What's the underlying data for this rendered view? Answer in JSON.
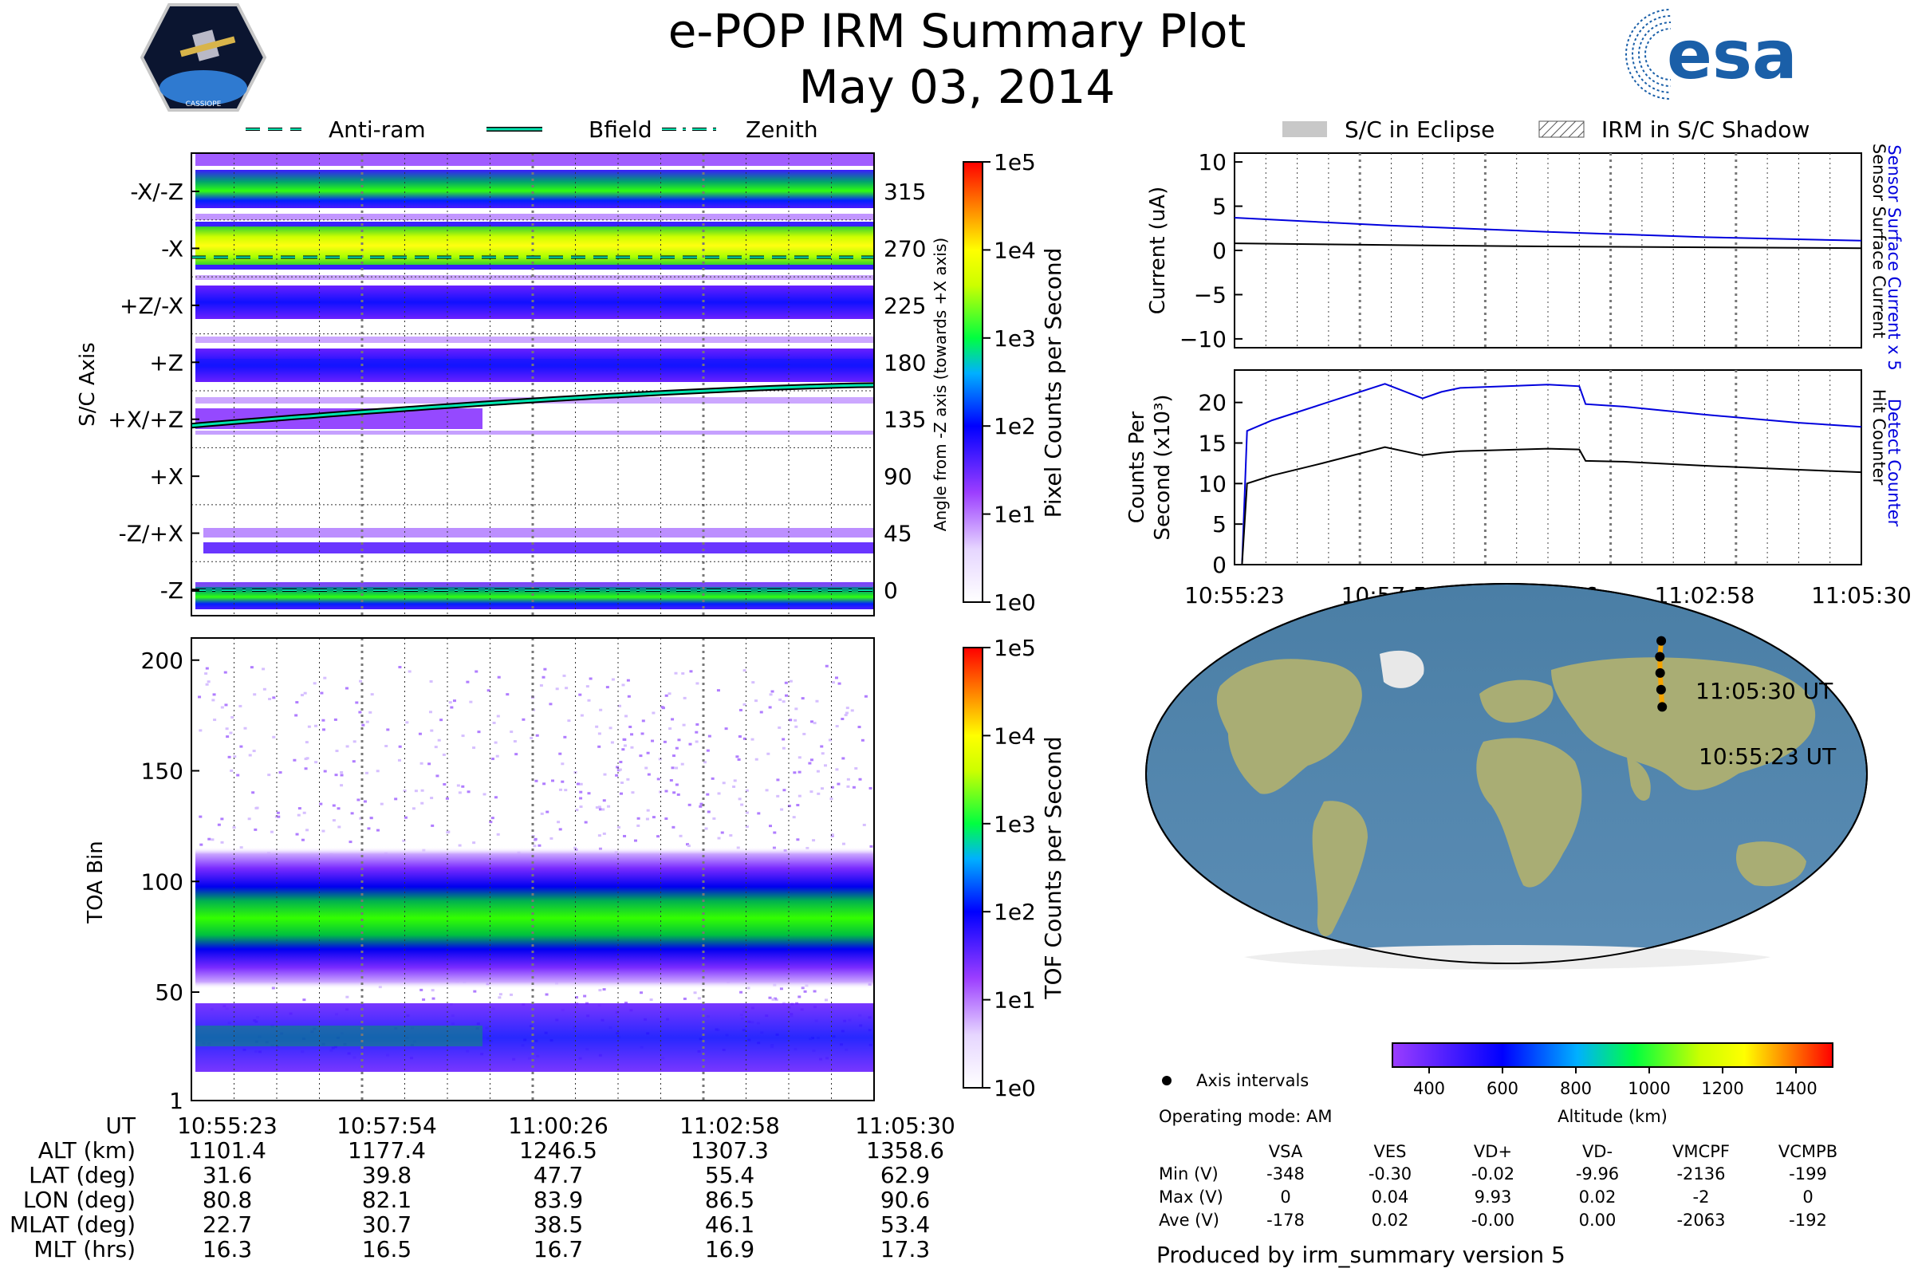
{
  "header": {
    "title": "e-POP IRM Summary Plot",
    "date": "May 03, 2014",
    "mission_logo": "CASSIOPE",
    "agency_logo": "esa"
  },
  "colors": {
    "blue_line": "#0000dd",
    "black_line": "#000000",
    "bfield": "#00e5b0",
    "ut_markers": "#f5a400"
  },
  "legend_top_left": [
    {
      "label": "Anti-ram",
      "style": "dashed"
    },
    {
      "label": "Bfield",
      "style": "solid"
    },
    {
      "label": "Zenith",
      "style": "dash-dot"
    }
  ],
  "legend_top_right": [
    {
      "label": "S/C in Eclipse",
      "style": "gray-fill"
    },
    {
      "label": "IRM in S/C Shadow",
      "style": "hatch"
    }
  ],
  "time_ticks": [
    "10:55:23",
    "10:57:54",
    "11:00:26",
    "11:02:58",
    "11:05:30"
  ],
  "chart_data": [
    {
      "type": "heatmap",
      "name": "pixel-counts",
      "ylabel": "S/C Axis",
      "ylabel_right": "Angle from -Z axis (towards +X axis)",
      "y_categories": [
        "-X/-Z",
        "-X",
        "+Z/-X",
        "+Z",
        "+X/+Z",
        "+X",
        "-Z/+X",
        "-Z"
      ],
      "y_angles": [
        "315",
        "270",
        "225",
        "180",
        "135",
        "90",
        "45",
        "0"
      ],
      "colorbar_label": "Pixel Counts per Second",
      "colorbar_ticks": [
        "1e5",
        "1e4",
        "1e3",
        "1e2",
        "1e1",
        "1e0"
      ],
      "bfield_angle": {
        "start": 130,
        "end": 162
      },
      "antiram_angle": 263,
      "zenith_angle": 0
    },
    {
      "type": "heatmap",
      "name": "tof-counts",
      "ylabel": "TOA Bin",
      "y_ticks": [
        "200",
        "150",
        "100",
        "50",
        "1"
      ],
      "ylim": [
        1,
        210
      ],
      "band_centers": [
        75,
        28
      ],
      "colorbar_label": "TOF Counts per Second",
      "colorbar_ticks": [
        "1e5",
        "1e4",
        "1e3",
        "1e2",
        "1e1",
        "1e0"
      ]
    },
    {
      "type": "line",
      "name": "current",
      "ylabel": "Current (uA)",
      "ylim": [
        -11,
        11
      ],
      "y_ticks": [
        "10",
        "5",
        "0",
        "−5",
        "−10"
      ],
      "series": [
        {
          "name": "Sensor Surface Current x 5",
          "x": [
            0,
            0.25,
            0.5,
            0.75,
            1
          ],
          "values": [
            3.7,
            2.8,
            2.1,
            1.5,
            1.1
          ]
        },
        {
          "name": "Sensor Surface Current",
          "x": [
            0,
            0.25,
            0.5,
            0.75,
            1
          ],
          "values": [
            0.8,
            0.6,
            0.45,
            0.35,
            0.25
          ]
        }
      ]
    },
    {
      "type": "line",
      "name": "counts",
      "ylabel_line1": "Counts Per",
      "ylabel_line2": "Second (x10³)",
      "ylim": [
        0,
        24
      ],
      "y_ticks": [
        "20",
        "15",
        "10",
        "5",
        "0"
      ],
      "series": [
        {
          "name": "Detect Counter",
          "x": [
            0,
            0.012,
            0.02,
            0.06,
            0.14,
            0.24,
            0.3,
            0.33,
            0.36,
            0.5,
            0.55,
            0.56,
            0.62,
            0.75,
            0.9,
            1
          ],
          "values": [
            0,
            0,
            16.5,
            17.8,
            19.8,
            22.3,
            20.5,
            21.3,
            21.8,
            22.2,
            22,
            19.8,
            19.5,
            18.5,
            17.5,
            17
          ]
        },
        {
          "name": "Hit Counter",
          "x": [
            0,
            0.012,
            0.02,
            0.06,
            0.14,
            0.24,
            0.3,
            0.33,
            0.36,
            0.5,
            0.55,
            0.56,
            0.62,
            0.75,
            0.9,
            1
          ],
          "values": [
            0,
            0,
            10,
            11,
            12.5,
            14.5,
            13.5,
            13.8,
            14,
            14.3,
            14.2,
            12.8,
            12.7,
            12.2,
            11.7,
            11.4
          ]
        }
      ]
    },
    {
      "type": "scatter",
      "name": "ground-track",
      "start_label": "10:55:23 UT",
      "end_label": "11:05:30 UT",
      "points": [
        {
          "lon": 80.8,
          "lat": 31.6
        },
        {
          "lon": 82.1,
          "lat": 39.8
        },
        {
          "lon": 83.9,
          "lat": 47.7
        },
        {
          "lon": 86.5,
          "lat": 55.4
        },
        {
          "lon": 90.6,
          "lat": 62.9
        }
      ],
      "colorbar_label": "Altitude (km)",
      "colorbar_ticks": [
        "400",
        "600",
        "800",
        "1000",
        "1200",
        "1400"
      ],
      "colorbar_range": [
        300,
        1500
      ]
    }
  ],
  "ephemeris": {
    "labels": [
      "UT",
      "ALT (km)",
      "LAT (deg)",
      "LON (deg)",
      "MLAT (deg)",
      "MLT (hrs)"
    ],
    "rows": [
      [
        "10:55:23",
        "10:57:54",
        "11:00:26",
        "11:02:58",
        "11:05:30"
      ],
      [
        "1101.4",
        "1177.4",
        "1246.5",
        "1307.3",
        "1358.6"
      ],
      [
        "31.6",
        "39.8",
        "47.7",
        "55.4",
        "62.9"
      ],
      [
        "80.8",
        "82.1",
        "83.9",
        "86.5",
        "90.6"
      ],
      [
        "22.7",
        "30.7",
        "38.5",
        "46.1",
        "53.4"
      ],
      [
        "16.3",
        "16.5",
        "16.7",
        "16.9",
        "17.3"
      ]
    ]
  },
  "info": {
    "axis_intervals": "Axis intervals",
    "operating_mode": "Operating mode: AM",
    "produced_by": "Produced by irm_summary version 5"
  },
  "voltages": {
    "headers": [
      "VSA",
      "VES",
      "VD+",
      "VD-",
      "VMCPF",
      "VCMPB"
    ],
    "rows": [
      {
        "label": "Min (V)",
        "values": [
          "-348",
          "-0.30",
          "-0.02",
          "-9.96",
          "-2136",
          "-199"
        ]
      },
      {
        "label": "Max (V)",
        "values": [
          "0",
          "0.04",
          "9.93",
          "0.02",
          "-2",
          "0"
        ]
      },
      {
        "label": "Ave (V)",
        "values": [
          "-178",
          "0.02",
          "-0.00",
          "0.00",
          "-2063",
          "-192"
        ]
      }
    ]
  }
}
